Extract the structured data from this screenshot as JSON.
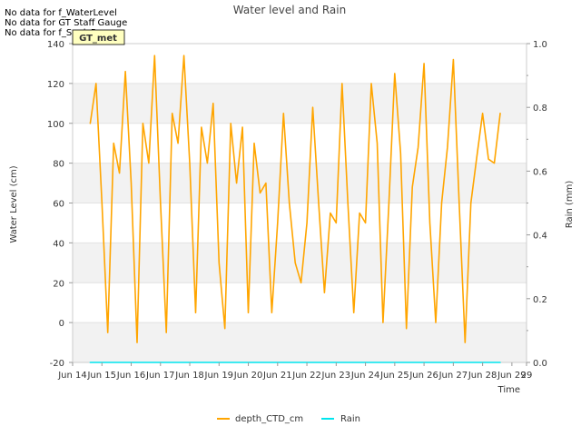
{
  "chart_data": {
    "type": "line",
    "title": "Water level and Rain",
    "xlabel": "Time",
    "ylabel_left": "Water Level (cm)",
    "ylabel_right": "Rain (mm)",
    "xlim": [
      13.5,
      29.0
    ],
    "ylim_left": [
      -20,
      140
    ],
    "ylim_right": [
      0.0,
      1.0
    ],
    "x_ticks": [
      {
        "v": 13.5,
        "label": "Jun 14"
      },
      {
        "v": 14.5,
        "label": "Jun 15"
      },
      {
        "v": 15.5,
        "label": "Jun 16"
      },
      {
        "v": 16.5,
        "label": "Jun 17"
      },
      {
        "v": 17.5,
        "label": "Jun 18"
      },
      {
        "v": 18.5,
        "label": "Jun 19"
      },
      {
        "v": 19.5,
        "label": "Jun 20"
      },
      {
        "v": 20.5,
        "label": "Jun 21"
      },
      {
        "v": 21.5,
        "label": "Jun 22"
      },
      {
        "v": 22.5,
        "label": "Jun 23"
      },
      {
        "v": 23.5,
        "label": "Jun 24"
      },
      {
        "v": 24.5,
        "label": "Jun 25"
      },
      {
        "v": 25.5,
        "label": "Jun 26"
      },
      {
        "v": 26.5,
        "label": "Jun 27"
      },
      {
        "v": 27.5,
        "label": "Jun 28"
      },
      {
        "v": 28.5,
        "label": "Jun 29"
      },
      {
        "v": 29.0,
        "label": "29"
      }
    ],
    "y_ticks_left": [
      -20,
      0,
      20,
      40,
      60,
      80,
      100,
      120,
      140
    ],
    "y_ticks_right": [
      "0.0",
      "0.2",
      "0.4",
      "0.6",
      "0.8",
      "1.0"
    ],
    "grid": true,
    "legend_position": "bottom-center",
    "series": [
      {
        "name": "depth_CTD_cm",
        "color": "#FFA500",
        "x": [
          14.1,
          14.3,
          14.5,
          14.7,
          14.9,
          15.1,
          15.3,
          15.5,
          15.7,
          15.9,
          16.1,
          16.3,
          16.5,
          16.7,
          16.9,
          17.1,
          17.3,
          17.5,
          17.7,
          17.9,
          18.1,
          18.3,
          18.5,
          18.7,
          18.9,
          19.1,
          19.3,
          19.5,
          19.7,
          19.9,
          20.1,
          20.3,
          20.5,
          20.7,
          20.9,
          21.1,
          21.3,
          21.5,
          21.7,
          21.9,
          22.1,
          22.3,
          22.5,
          22.7,
          22.9,
          23.1,
          23.3,
          23.5,
          23.7,
          23.9,
          24.1,
          24.3,
          24.5,
          24.7,
          24.9,
          25.1,
          25.3,
          25.5,
          25.7,
          25.9,
          26.1,
          26.3,
          26.5,
          26.7,
          26.9,
          27.1,
          27.3,
          27.5,
          27.7,
          27.9,
          28.1
        ],
        "y": [
          100,
          120,
          60,
          -5,
          90,
          75,
          126,
          70,
          -10,
          100,
          80,
          134,
          60,
          -5,
          105,
          90,
          134,
          80,
          5,
          98,
          80,
          110,
          30,
          -3,
          100,
          70,
          98,
          5,
          90,
          65,
          70,
          5,
          50,
          105,
          60,
          30,
          20,
          50,
          108,
          60,
          15,
          55,
          50,
          120,
          60,
          5,
          55,
          50,
          120,
          90,
          0,
          60,
          125,
          85,
          -3,
          68,
          88,
          130,
          50,
          0,
          60,
          88,
          132,
          60,
          -10,
          60,
          83,
          105,
          82,
          80,
          105
        ]
      },
      {
        "name": "Rain",
        "color": "#00E5EE",
        "x": [
          14.1,
          28.1
        ],
        "y": [
          0.0,
          0.0
        ]
      }
    ]
  },
  "no_data_messages": [
    "No data for f_WaterLevel",
    "No data for GT Staff Gauge",
    "No data for f_SonicRng"
  ],
  "badge": {
    "label": "GT_met",
    "bg_color": "#FFFFC0",
    "text_color": "#8B0000"
  }
}
